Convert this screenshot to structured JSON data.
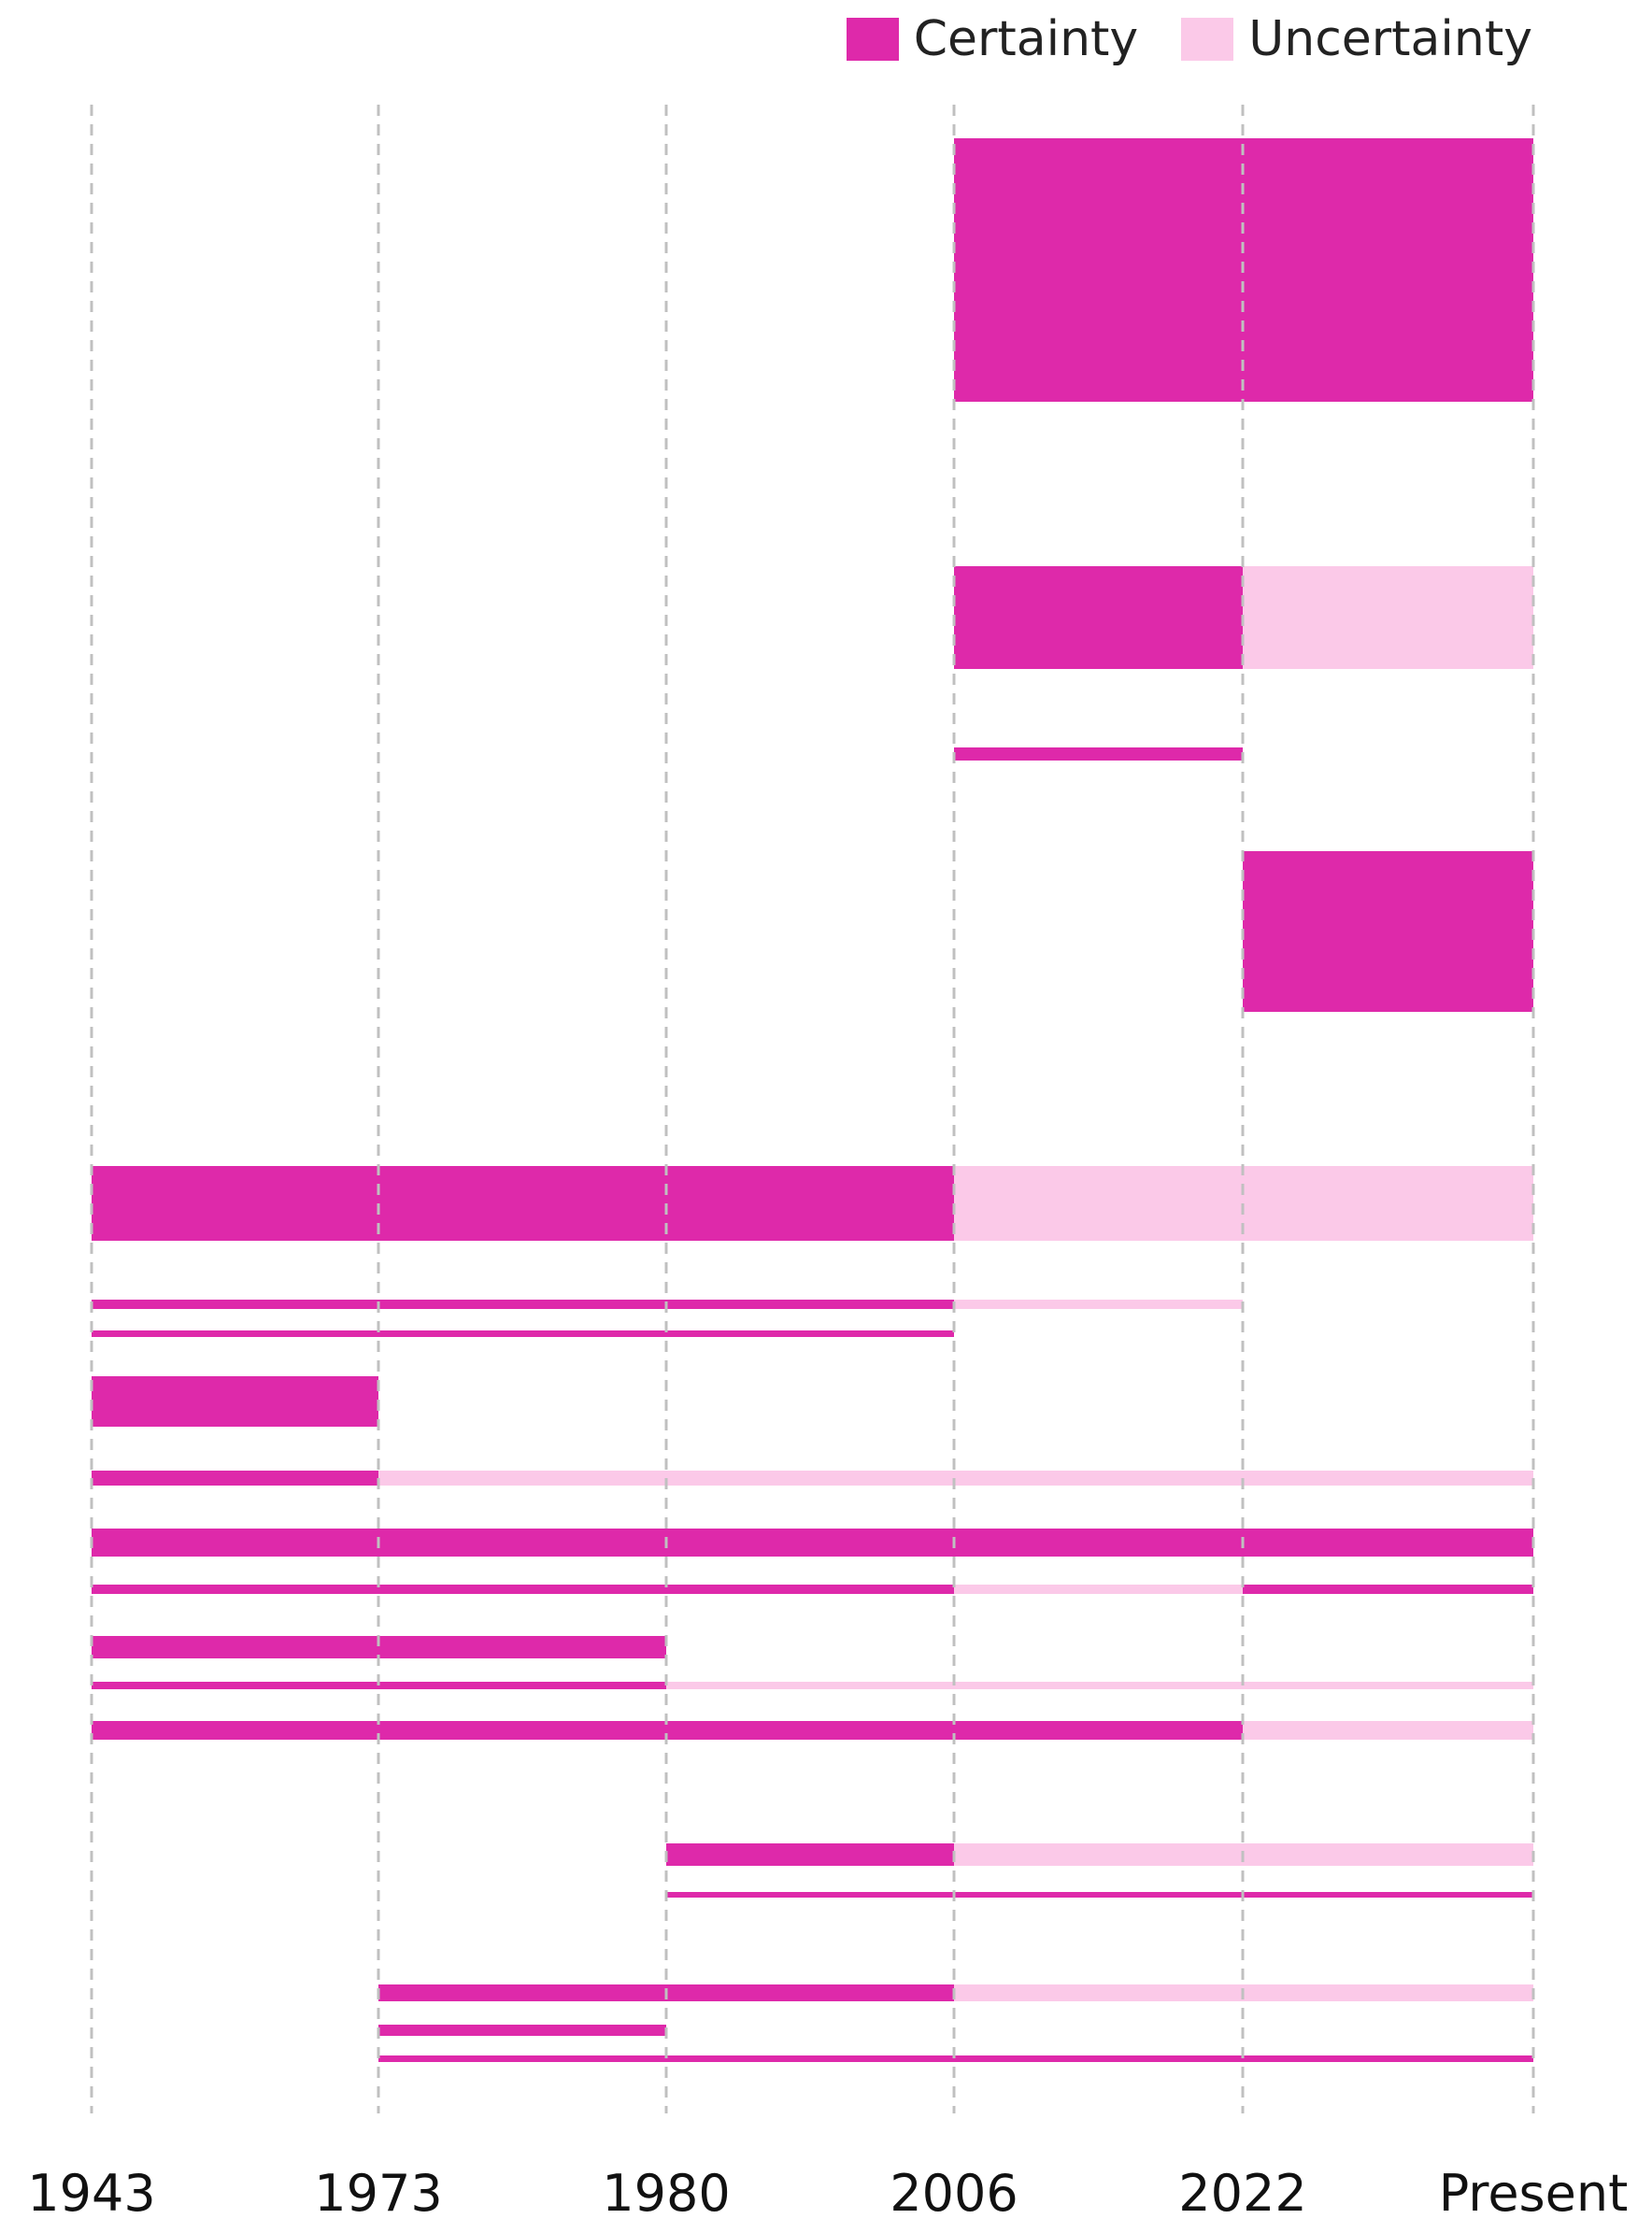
{
  "legend": {
    "certainty_label": "Certainty",
    "uncertainty_label": "Uncertainty"
  },
  "colors": {
    "certainty": "#de29aa",
    "uncertainty": "#fbc9e8",
    "gridline": "#c0c0c0",
    "tick_text": "#111111"
  },
  "chart_data": {
    "type": "bar",
    "orientation": "horizontal-timeline",
    "title": "",
    "xlabel": "",
    "ylabel": "",
    "x_ticks": [
      "1943",
      "1973",
      "1980",
      "2006",
      "2022",
      "Present"
    ],
    "grid": "vertical dashed lines at each tick",
    "legend_position": "top-right",
    "legend": [
      "Certainty",
      "Uncertainty"
    ],
    "segments": [
      {
        "row": 1,
        "weight": 282,
        "start": "2006",
        "end": "Present",
        "status": "Certainty"
      },
      {
        "row": 2,
        "weight": 110,
        "start": "2006",
        "end": "2022",
        "status": "Certainty"
      },
      {
        "row": 2,
        "weight": 110,
        "start": "2022",
        "end": "Present",
        "status": "Uncertainty"
      },
      {
        "row": 3,
        "weight": 14,
        "start": "2006",
        "end": "2022",
        "status": "Certainty"
      },
      {
        "row": 4,
        "weight": 172,
        "start": "2022",
        "end": "Present",
        "status": "Certainty"
      },
      {
        "row": 5,
        "weight": 80,
        "start": "1943",
        "end": "2006",
        "status": "Certainty"
      },
      {
        "row": 5,
        "weight": 80,
        "start": "2006",
        "end": "Present",
        "status": "Uncertainty"
      },
      {
        "row": 6,
        "weight": 10,
        "start": "1943",
        "end": "2006",
        "status": "Certainty"
      },
      {
        "row": 6,
        "weight": 10,
        "start": "2006",
        "end": "2022",
        "status": "Uncertainty"
      },
      {
        "row": 7,
        "weight": 7,
        "start": "1943",
        "end": "2006",
        "status": "Certainty"
      },
      {
        "row": 8,
        "weight": 54,
        "start": "1943",
        "end": "1973",
        "status": "Certainty"
      },
      {
        "row": 9,
        "weight": 16,
        "start": "1943",
        "end": "1973",
        "status": "Certainty"
      },
      {
        "row": 9,
        "weight": 16,
        "start": "1973",
        "end": "Present",
        "status": "Uncertainty"
      },
      {
        "row": 10,
        "weight": 30,
        "start": "1943",
        "end": "Present",
        "status": "Certainty"
      },
      {
        "row": 11,
        "weight": 10,
        "start": "1943",
        "end": "2006",
        "status": "Certainty"
      },
      {
        "row": 11,
        "weight": 10,
        "start": "2006",
        "end": "2022",
        "status": "Uncertainty"
      },
      {
        "row": 11,
        "weight": 10,
        "start": "2022",
        "end": "Present",
        "status": "Certainty"
      },
      {
        "row": 12,
        "weight": 24,
        "start": "1943",
        "end": "1980",
        "status": "Certainty"
      },
      {
        "row": 13,
        "weight": 8,
        "start": "1943",
        "end": "1980",
        "status": "Certainty"
      },
      {
        "row": 13,
        "weight": 8,
        "start": "1980",
        "end": "Present",
        "status": "Uncertainty"
      },
      {
        "row": 14,
        "weight": 20,
        "start": "1943",
        "end": "2022",
        "status": "Certainty"
      },
      {
        "row": 14,
        "weight": 20,
        "start": "2022",
        "end": "Present",
        "status": "Uncertainty"
      },
      {
        "row": 15,
        "weight": 24,
        "start": "1980",
        "end": "2006",
        "status": "Certainty"
      },
      {
        "row": 15,
        "weight": 24,
        "start": "2006",
        "end": "Present",
        "status": "Uncertainty"
      },
      {
        "row": 16,
        "weight": 6,
        "start": "1980",
        "end": "Present",
        "status": "Certainty"
      },
      {
        "row": 17,
        "weight": 18,
        "start": "1973",
        "end": "2006",
        "status": "Certainty"
      },
      {
        "row": 17,
        "weight": 18,
        "start": "2006",
        "end": "Present",
        "status": "Uncertainty"
      },
      {
        "row": 18,
        "weight": 12,
        "start": "1973",
        "end": "1980",
        "status": "Certainty"
      },
      {
        "row": 19,
        "weight": 7,
        "start": "1973",
        "end": "Present",
        "status": "Certainty"
      }
    ]
  }
}
